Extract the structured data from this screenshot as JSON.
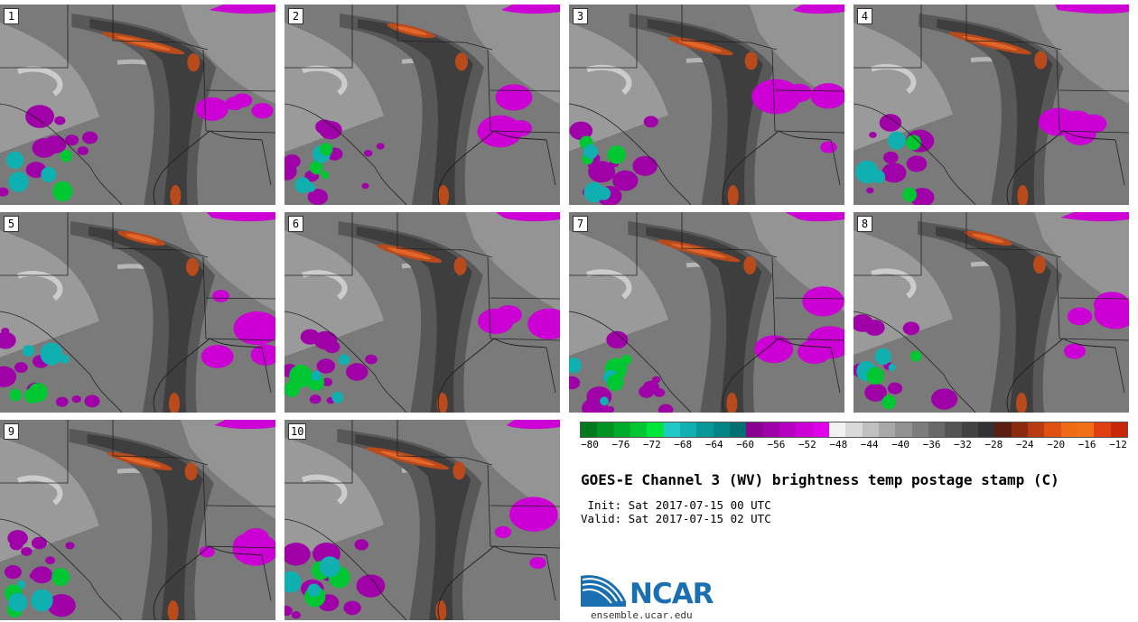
{
  "panels": [
    {
      "label": "1"
    },
    {
      "label": "2"
    },
    {
      "label": "3"
    },
    {
      "label": "4"
    },
    {
      "label": "5"
    },
    {
      "label": "6"
    },
    {
      "label": "7"
    },
    {
      "label": "8"
    },
    {
      "label": "9"
    },
    {
      "label": "10"
    }
  ],
  "colorbar": {
    "colors": [
      "#007a1c",
      "#009422",
      "#00ac2a",
      "#00c632",
      "#00e63a",
      "#20c8c8",
      "#10b0b0",
      "#089898",
      "#008484",
      "#007070",
      "#8a0090",
      "#a000a8",
      "#b800c0",
      "#cc00d4",
      "#e000e8",
      "#f2f2f2",
      "#d9d9d9",
      "#c0c0c0",
      "#a8a8a8",
      "#929292",
      "#7c7c7c",
      "#686868",
      "#545454",
      "#424242",
      "#323232",
      "#5a1e12",
      "#8c2a10",
      "#b83c10",
      "#e05010",
      "#ee6a14",
      "#f07018",
      "#e04010",
      "#c82808"
    ],
    "ticks": [
      "−80",
      "−76",
      "−72",
      "−68",
      "−64",
      "−60",
      "−56",
      "−52",
      "−48",
      "−44",
      "−40",
      "−36",
      "−32",
      "−28",
      "−24",
      "−20",
      "−16",
      "−12"
    ]
  },
  "title": "GOES-E Channel 3 (WV) brightness temp postage stamp (C)",
  "init_line": " Init: Sat 2017-07-15 00 UTC",
  "valid_line": "Valid: Sat 2017-07-15 02 UTC",
  "logo_text": "NCAR",
  "website": "ensemble.ucar.edu"
}
